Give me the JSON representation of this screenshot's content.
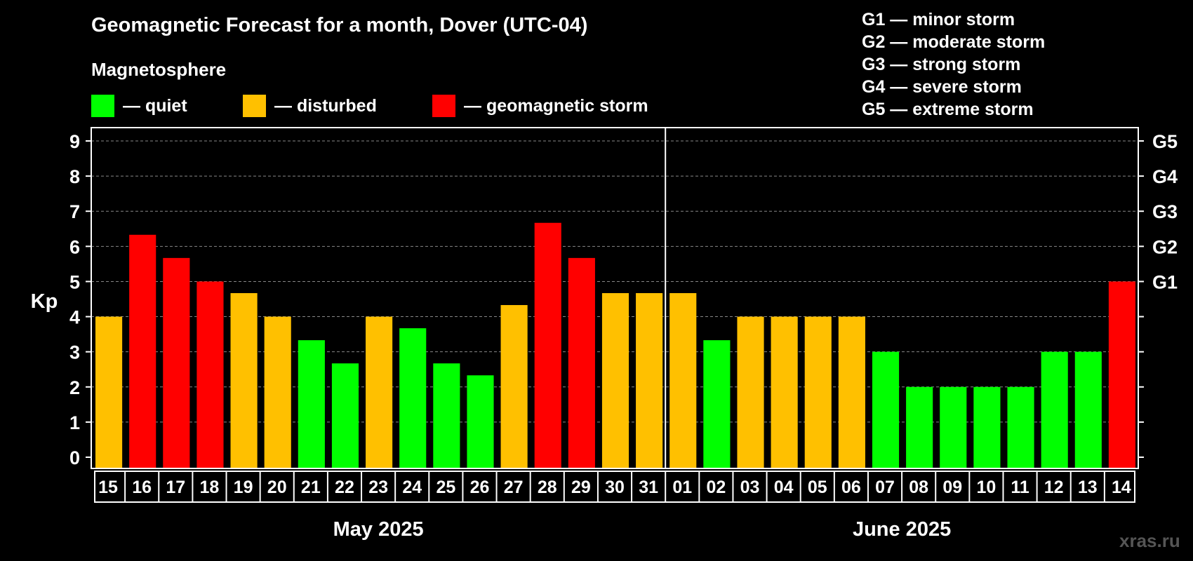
{
  "title": "Geomagnetic Forecast for a month, Dover (UTC-04)",
  "subtitle": "Magnetosphere",
  "legend": [
    {
      "label": "— quiet",
      "color": "#00ff00"
    },
    {
      "label": "— disturbed",
      "color": "#ffc000"
    },
    {
      "label": "— geomagnetic storm",
      "color": "#ff0000"
    }
  ],
  "storm_scale": [
    "G1 — minor storm",
    "G2 — moderate storm",
    "G3 — strong storm",
    "G4 — severe storm",
    "G5 — extreme storm"
  ],
  "watermark": "xras.ru",
  "colors": {
    "quiet": "#00ff00",
    "disturbed": "#ffc000",
    "storm": "#ff0000",
    "grid": "#888888"
  },
  "chart_data": {
    "type": "bar",
    "ylabel": "Kp",
    "ylim": [
      0,
      9
    ],
    "yticks": [
      "0",
      "1",
      "2",
      "3",
      "4",
      "5",
      "6",
      "7",
      "8",
      "9"
    ],
    "right_ticks": [
      {
        "kp": 5,
        "label": "G1"
      },
      {
        "kp": 6,
        "label": "G2"
      },
      {
        "kp": 7,
        "label": "G3"
      },
      {
        "kp": 8,
        "label": "G4"
      },
      {
        "kp": 9,
        "label": "G5"
      }
    ],
    "months": [
      {
        "label": "May 2025",
        "days": [
          "15",
          "16",
          "17",
          "18",
          "19",
          "20",
          "21",
          "22",
          "23",
          "24",
          "25",
          "26",
          "27",
          "28",
          "29",
          "30",
          "31"
        ]
      },
      {
        "label": "June 2025",
        "days": [
          "01",
          "02",
          "03",
          "04",
          "05",
          "06",
          "07",
          "08",
          "09",
          "10",
          "11",
          "12",
          "13",
          "14"
        ]
      }
    ],
    "values": [
      4,
      6.33,
      5.67,
      5,
      4.67,
      4,
      3.33,
      2.67,
      4,
      3.67,
      2.67,
      2.33,
      4.33,
      6.67,
      5.67,
      4.67,
      4.67,
      4.67,
      3.33,
      4,
      4,
      4,
      4,
      3,
      2,
      2,
      2,
      2,
      3,
      3,
      5
    ],
    "levels": [
      "disturbed",
      "storm",
      "storm",
      "storm",
      "disturbed",
      "disturbed",
      "quiet",
      "quiet",
      "disturbed",
      "quiet",
      "quiet",
      "quiet",
      "disturbed",
      "storm",
      "storm",
      "disturbed",
      "disturbed",
      "disturbed",
      "quiet",
      "disturbed",
      "disturbed",
      "disturbed",
      "disturbed",
      "quiet",
      "quiet",
      "quiet",
      "quiet",
      "quiet",
      "quiet",
      "quiet",
      "storm"
    ]
  }
}
